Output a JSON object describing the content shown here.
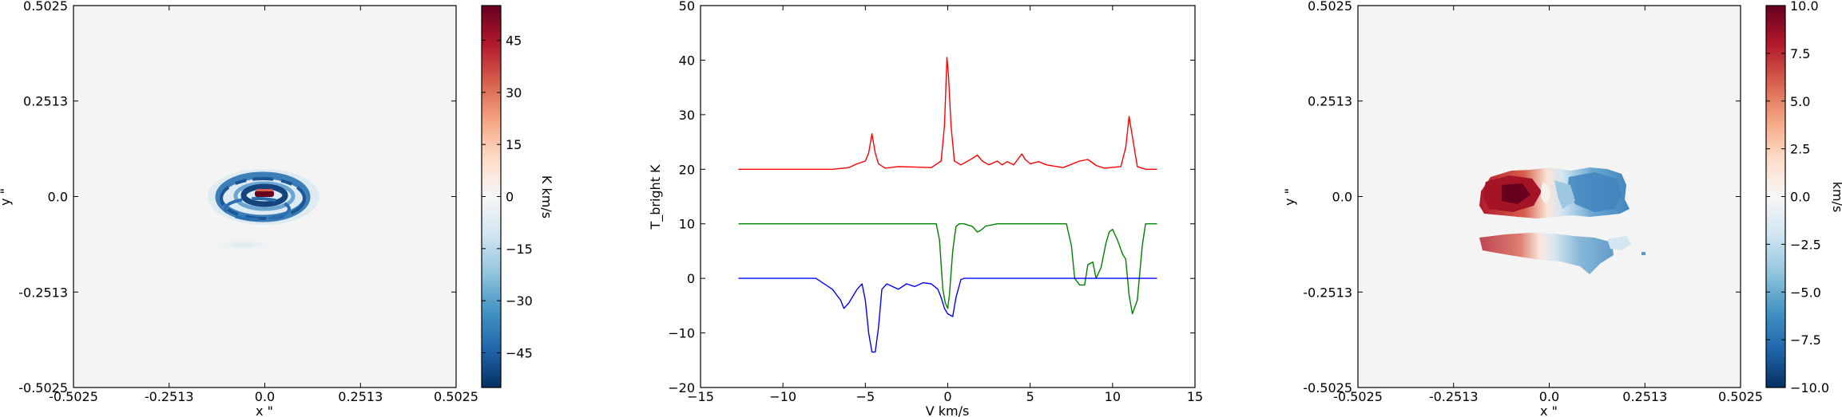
{
  "chart_data": [
    {
      "type": "heatmap",
      "title": "",
      "xlabel": "x \"",
      "ylabel": "y \"",
      "xlim": [
        -0.5025,
        0.5025
      ],
      "ylim": [
        -0.5025,
        0.5025
      ],
      "xticks": [
        -0.5025,
        -0.2513,
        0.0,
        0.2513,
        0.5025
      ],
      "xtick_labels": [
        "-0.5025",
        "-0.2513",
        "0.0",
        "0.2513",
        "0.5025"
      ],
      "yticks": [
        -0.5025,
        -0.2513,
        0.0,
        0.2513,
        0.5025
      ],
      "ytick_labels": [
        "-0.5025",
        "-0.2513",
        "0.0",
        "0.2513",
        "0.5025"
      ],
      "colorbar": {
        "label": "K km/s",
        "colormap": "RdBu_r",
        "range": [
          -55,
          55
        ],
        "ticks": [
          -45,
          -30,
          -15,
          0,
          15,
          30,
          45
        ],
        "tick_labels": [
          "−45",
          "−30",
          "−15",
          "0",
          "15",
          "30",
          "45"
        ]
      },
      "features": [
        {
          "kind": "ring",
          "x": -0.005,
          "y": 0.0,
          "rx": 0.11,
          "ry": 0.055,
          "value": -35
        },
        {
          "kind": "ring",
          "x": 0.0,
          "y": 0.0,
          "rx": 0.06,
          "ry": 0.03,
          "value": -42
        },
        {
          "kind": "arc",
          "x": -0.02,
          "y": -0.04,
          "rx": 0.09,
          "ry": 0.035,
          "value": -30
        },
        {
          "kind": "core",
          "x": 0.0,
          "y": 0.005,
          "rx": 0.025,
          "ry": 0.008,
          "value": 52
        },
        {
          "kind": "faint-patch",
          "x": -0.05,
          "y": -0.14,
          "rx": 0.08,
          "ry": 0.015,
          "value": -6
        }
      ]
    },
    {
      "type": "line",
      "title": "",
      "xlabel": "V km/s",
      "ylabel": "T_bright K",
      "xlim": [
        -15,
        15
      ],
      "ylim": [
        -20,
        50
      ],
      "xticks": [
        -15,
        -10,
        -5,
        0,
        5,
        10,
        15
      ],
      "xtick_labels": [
        "−15",
        "−10",
        "−5",
        "0",
        "5",
        "10",
        "15"
      ],
      "yticks": [
        -20,
        -10,
        0,
        10,
        20,
        30,
        40,
        50
      ],
      "ytick_labels": [
        "−20",
        "−10",
        "0",
        "10",
        "20",
        "30",
        "40",
        "50"
      ],
      "series": [
        {
          "color": "#ff0000",
          "x": [
            -12.7,
            -7,
            -6,
            -5.5,
            -5,
            -4.8,
            -4.6,
            -4.4,
            -4.2,
            -4,
            -3.8,
            -3,
            -1,
            -0.4,
            -0.2,
            -0.05,
            0.05,
            0.2,
            0.4,
            0.8,
            1.5,
            1.8,
            2.1,
            2.5,
            3,
            3.3,
            3.6,
            4,
            4.5,
            4.7,
            5,
            5.5,
            6,
            7,
            8,
            8.5,
            9,
            9.5,
            10.5,
            10.8,
            11,
            11.2,
            11.5,
            12,
            12.7
          ],
          "values": [
            20,
            20,
            20.3,
            21,
            21.5,
            23,
            26.5,
            23,
            21,
            20.6,
            20.2,
            20.5,
            20.3,
            21.5,
            28,
            40.5,
            37,
            28,
            21.5,
            20.8,
            22,
            22.6,
            21.5,
            20.8,
            21.5,
            20.8,
            21.4,
            20.8,
            22.8,
            21.8,
            21,
            21.4,
            20.8,
            20.3,
            21.5,
            21.8,
            20.7,
            20.2,
            20.5,
            24,
            29.7,
            26,
            20.5,
            20,
            20
          ]
        },
        {
          "color": "#008000",
          "x": [
            -12.7,
            -1,
            -0.7,
            -0.5,
            -0.3,
            -0.15,
            0,
            0.1,
            0.3,
            0.5,
            0.7,
            1,
            1.5,
            1.8,
            2,
            2.3,
            3,
            7.2,
            7.5,
            7.7,
            8,
            8.3,
            8.5,
            8.8,
            9,
            9.3,
            9.6,
            9.8,
            10,
            10.3,
            10.6,
            10.8,
            11,
            11.2,
            11.5,
            11.8,
            12,
            12.7
          ],
          "values": [
            10,
            10,
            10,
            7,
            -2,
            -4.5,
            -5.5,
            -3,
            5,
            9.5,
            10,
            10,
            9.5,
            8.5,
            8.8,
            9.6,
            10,
            10,
            6,
            0,
            -1.2,
            -1.2,
            2.5,
            3,
            0,
            2,
            6.5,
            8.5,
            9,
            7,
            4.5,
            3.5,
            -3,
            -6.5,
            -4,
            6,
            10,
            10
          ]
        },
        {
          "color": "#0000ff",
          "x": [
            -12.7,
            -8,
            -7,
            -6.5,
            -6.3,
            -6,
            -5.5,
            -5.2,
            -5,
            -4.8,
            -4.6,
            -4.4,
            -4.2,
            -4,
            -3.7,
            -3,
            -2.5,
            -2,
            -1.5,
            -1,
            -0.6,
            -0.4,
            -0.2,
            0,
            0.3,
            0.5,
            0.8,
            1,
            12.7
          ],
          "values": [
            0,
            0,
            -2,
            -4,
            -5.5,
            -4.5,
            -2,
            -1,
            -4,
            -10,
            -13.5,
            -13.5,
            -9,
            -2,
            -1,
            -2,
            -1,
            -1.5,
            -0.8,
            -1,
            -2,
            -3.5,
            -5.5,
            -6.5,
            -7,
            -3.5,
            -0.2,
            0,
            0
          ]
        }
      ]
    },
    {
      "type": "heatmap",
      "title": "",
      "xlabel": "x \"",
      "ylabel": "y \"",
      "xlim": [
        -0.5025,
        0.5025
      ],
      "ylim": [
        -0.5025,
        0.5025
      ],
      "xticks": [
        -0.5025,
        -0.2513,
        0.0,
        0.2513,
        0.5025
      ],
      "xtick_labels": [
        "-0.5025",
        "-0.2513",
        "0.0",
        "0.2513",
        "0.5025"
      ],
      "yticks": [
        -0.5025,
        -0.2513,
        0.0,
        0.2513,
        0.5025
      ],
      "ytick_labels": [
        "-0.5025",
        "-0.2513",
        "0.0",
        "0.2513",
        "0.5025"
      ],
      "colorbar": {
        "label": "km/s",
        "colormap": "RdBu_r",
        "range": [
          -10,
          10
        ],
        "ticks": [
          -10,
          -7.5,
          -5,
          -2.5,
          0,
          2.5,
          5,
          7.5,
          10
        ],
        "tick_labels": [
          "−10.0",
          "−7.5",
          "−5.0",
          "−2.5",
          "0.0",
          "2.5",
          "5.0",
          "7.5",
          "10.0"
        ]
      },
      "features": [
        {
          "kind": "lobe",
          "x": -0.06,
          "y": 0.0,
          "rx": 0.1,
          "ry": 0.06,
          "value": 8
        },
        {
          "kind": "lobe",
          "x": 0.07,
          "y": 0.01,
          "rx": 0.1,
          "ry": 0.06,
          "value": -4
        },
        {
          "kind": "tail",
          "x": -0.08,
          "y": -0.135,
          "rx": 0.085,
          "ry": 0.03,
          "value": 2.5
        },
        {
          "kind": "tail",
          "x": 0.06,
          "y": -0.135,
          "rx": 0.08,
          "ry": 0.035,
          "value": -1.5
        }
      ]
    }
  ]
}
